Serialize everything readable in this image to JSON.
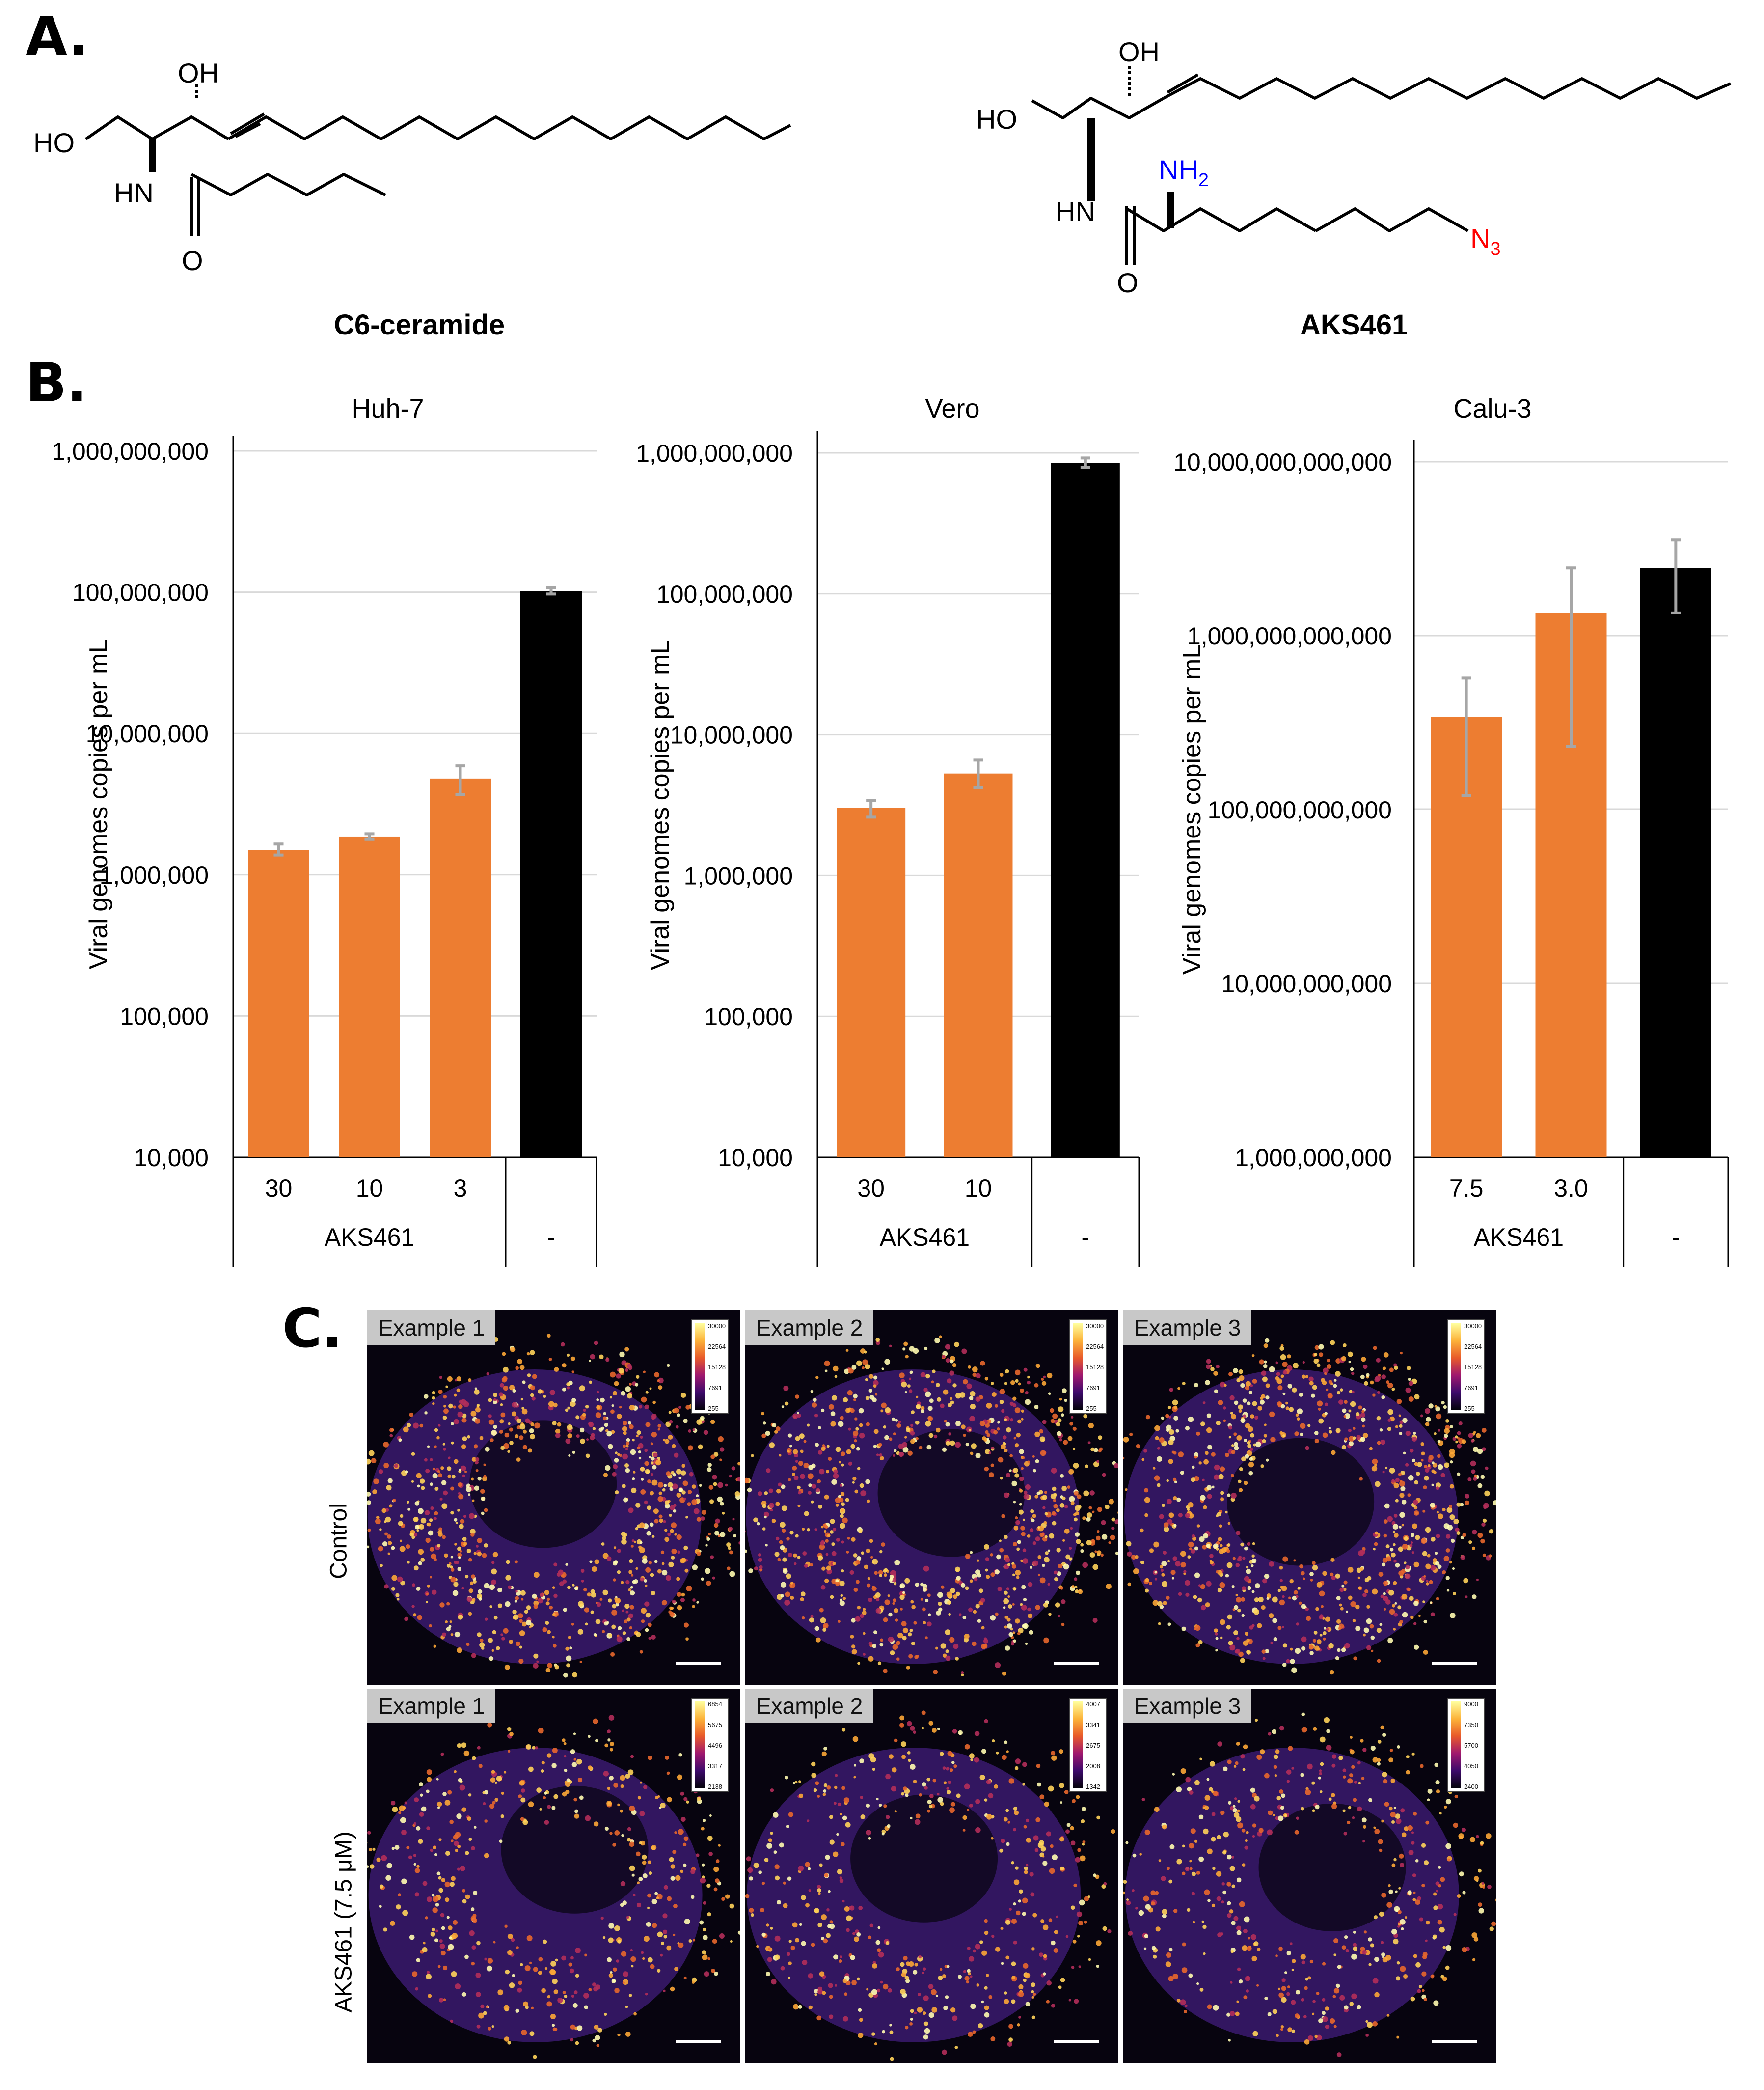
{
  "panels": {
    "a": "A.",
    "b": "B.",
    "c": "C."
  },
  "compounds": [
    {
      "name": "C6-ceramide",
      "atoms": [
        "OH",
        "HO",
        "HN",
        "O"
      ]
    },
    {
      "name": "AKS461",
      "atoms": [
        "OH",
        "HO",
        "HN",
        "O",
        "NH2",
        "N3"
      ]
    }
  ],
  "colors": {
    "treated": "#ed7d31",
    "control": "#000000",
    "error_bar": "#a6a6a6",
    "amine": "#0000ff",
    "azide": "#ff0000"
  },
  "chart_data": [
    {
      "type": "bar",
      "title": "Huh-7",
      "ylabel": "Viral genomes copies per mL",
      "yscale": "log",
      "ylim": [
        10000,
        1000000000
      ],
      "yticks": [
        10000,
        100000,
        1000000,
        10000000,
        100000000,
        1000000000
      ],
      "ytick_labels": [
        "10,000",
        "100,000",
        "1,000,000",
        "10,000,000",
        "100,000,000",
        "1,000,000,000"
      ],
      "categories": [
        "30",
        "10",
        "3",
        "-"
      ],
      "groups": [
        {
          "label": "AKS461",
          "span": 3
        },
        {
          "label": "-",
          "span": 1
        }
      ],
      "values": [
        1500000,
        1850000,
        4800000,
        102000000
      ],
      "errors": [
        [
          1380000,
          1650000
        ],
        [
          1780000,
          1950000
        ],
        [
          3700000,
          5900000
        ],
        [
          97000000,
          108000000
        ]
      ],
      "bar_colors": [
        "treated",
        "treated",
        "treated",
        "control"
      ],
      "grid": true
    },
    {
      "type": "bar",
      "title": "Vero",
      "ylabel": "Viral genomes copies per mL",
      "yscale": "log",
      "ylim": [
        10000,
        1000000000
      ],
      "yticks": [
        10000,
        100000,
        1000000,
        10000000,
        100000000,
        1000000000
      ],
      "ytick_labels": [
        "10,000",
        "100,000",
        "1,000,000",
        "10,000,000",
        "100,000,000",
        "1,000,000,000"
      ],
      "categories": [
        "30",
        "10",
        "-"
      ],
      "groups": [
        {
          "label": "AKS461",
          "span": 2
        },
        {
          "label": "-",
          "span": 1
        }
      ],
      "values": [
        3000000,
        5300000,
        850000000
      ],
      "errors": [
        [
          2600000,
          3400000
        ],
        [
          4200000,
          6600000
        ],
        [
          790000000,
          920000000
        ]
      ],
      "bar_colors": [
        "treated",
        "treated",
        "control"
      ],
      "grid": true
    },
    {
      "type": "bar",
      "title": "Calu-3",
      "ylabel": "Viral genomes copies per mL",
      "yscale": "log",
      "ylim": [
        1000000000,
        10000000000000
      ],
      "yticks": [
        1000000000,
        10000000000,
        100000000000,
        1000000000000,
        10000000000000
      ],
      "ytick_labels": [
        "1,000,000,000",
        "10,000,000,000",
        "100,000,000,000",
        "1,000,000,000,000",
        "10,000,000,000,000"
      ],
      "categories": [
        "7.5",
        "3.0",
        "-"
      ],
      "groups": [
        {
          "label": "AKS461",
          "span": 2
        },
        {
          "label": "-",
          "span": 1
        }
      ],
      "values": [
        340000000000,
        1350000000000,
        2450000000000
      ],
      "errors": [
        [
          120000000000,
          570000000000
        ],
        [
          230000000000,
          2450000000000
        ],
        [
          1350000000000,
          3550000000000
        ]
      ],
      "bar_colors": [
        "treated",
        "treated",
        "control"
      ],
      "grid": true
    }
  ],
  "microscopy": {
    "rows": [
      "Control",
      "AKS461 (7.5 μM)"
    ],
    "columns": [
      "Example 1",
      "Example 2",
      "Example 3"
    ],
    "colorbars": [
      [
        "30000",
        "22564",
        "15128",
        "7691",
        "255"
      ],
      [
        "30000",
        "22564",
        "15128",
        "7691",
        "255"
      ],
      [
        "30000",
        "22564",
        "15128",
        "7691",
        "255"
      ],
      [
        "6854",
        "5675",
        "4496",
        "3317",
        "2138"
      ],
      [
        "4007",
        "3341",
        "2675",
        "2008",
        "1342"
      ],
      [
        "9000",
        "7350",
        "5700",
        "4050",
        "2400"
      ]
    ]
  }
}
